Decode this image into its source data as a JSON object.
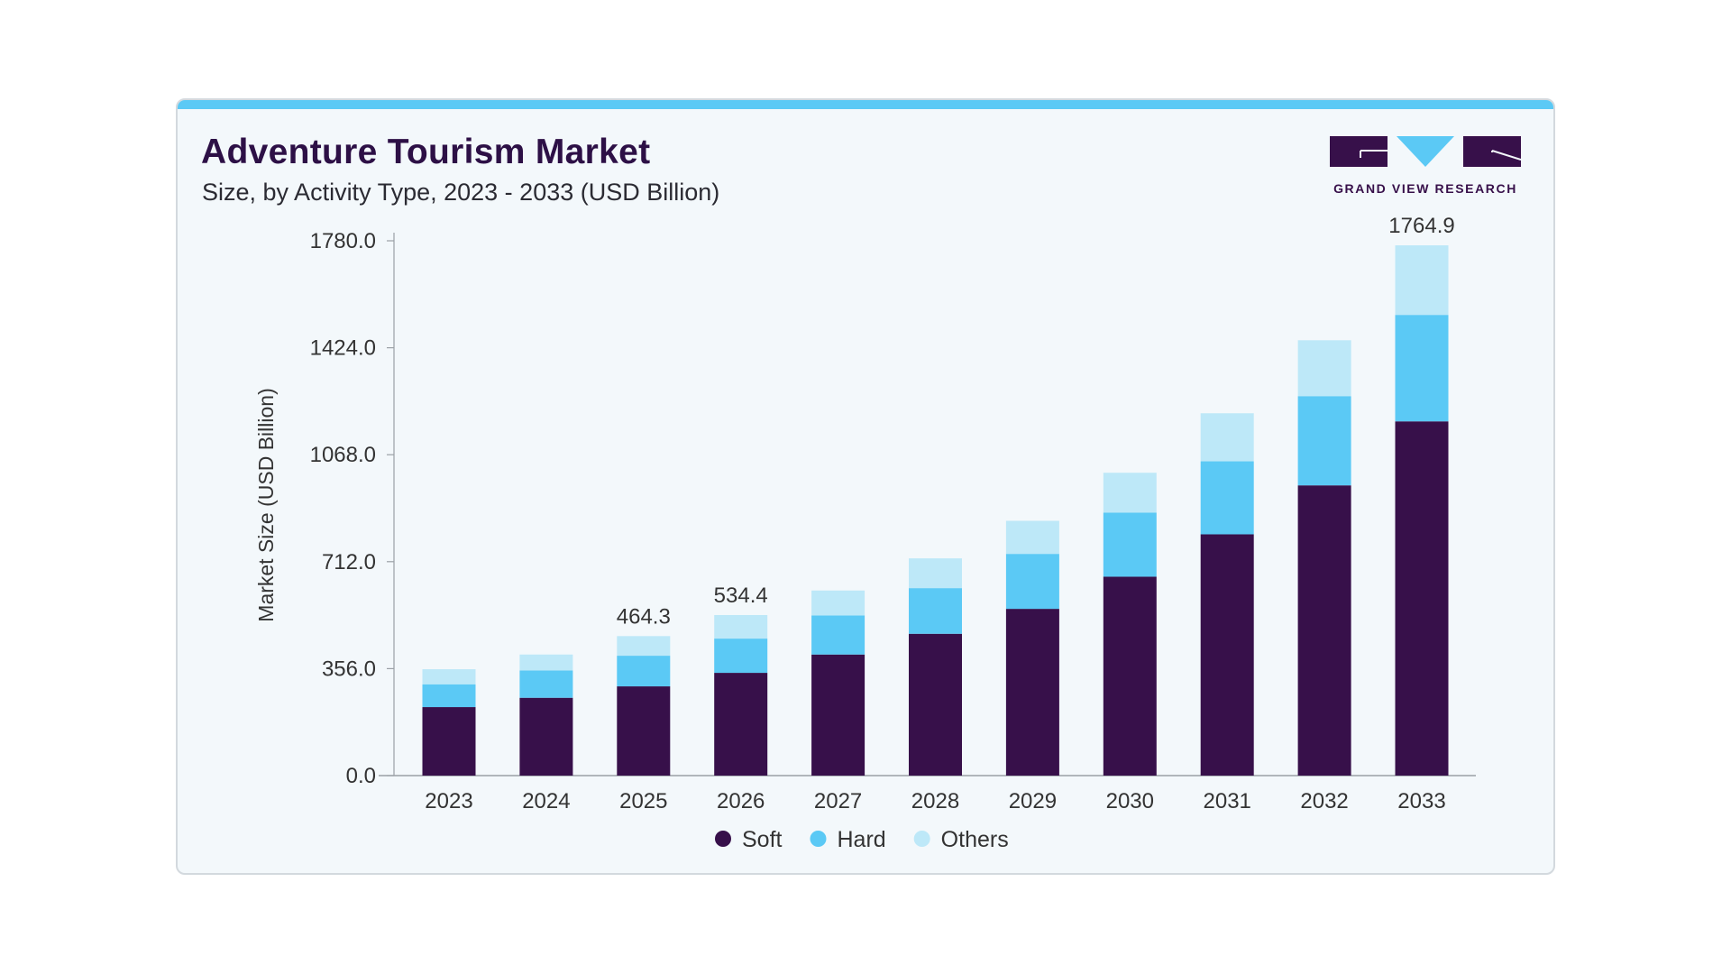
{
  "header": {
    "title": "Adventure Tourism Market",
    "subtitle": "Size, by Activity Type, 2023 - 2033 (USD Billion)"
  },
  "logo": {
    "text": "GRAND VIEW RESEARCH",
    "icon": "gvr-logo"
  },
  "colors": {
    "accent": "#5bc9f5",
    "soft": "#37104a",
    "hard": "#5bc9f5",
    "others": "#bde8f8",
    "background": "#f3f8fb"
  },
  "chart_data": {
    "type": "bar",
    "stacked": true,
    "title": "Adventure Tourism Market",
    "subtitle": "Size, by Activity Type, 2023 - 2033 (USD Billion)",
    "xlabel": "",
    "ylabel": "Market Size (USD Billion)",
    "ylim": [
      0,
      1780
    ],
    "yticks": [
      "0.0",
      "356.0",
      "712.0",
      "1068.0",
      "1424.0",
      "1780.0"
    ],
    "grid": false,
    "legend_position": "bottom",
    "categories": [
      "2023",
      "2024",
      "2025",
      "2026",
      "2027",
      "2028",
      "2029",
      "2030",
      "2031",
      "2032",
      "2033"
    ],
    "series": [
      {
        "name": "Soft",
        "color": "#37104a",
        "values": [
          228,
          259,
          297,
          342,
          403,
          472,
          555,
          662,
          803,
          966,
          1179
        ]
      },
      {
        "name": "Hard",
        "color": "#5bc9f5",
        "values": [
          76,
          91,
          102,
          114,
          130,
          152,
          183,
          213,
          243,
          297,
          354.4
        ]
      },
      {
        "name": "Others",
        "color": "#bde8f8",
        "values": [
          50,
          53,
          65.3,
          78.4,
          83,
          99,
          110,
          133,
          160,
          186,
          231.5
        ]
      }
    ],
    "data_labels": [
      {
        "category": "2025",
        "text": "464.3"
      },
      {
        "category": "2026",
        "text": "534.4"
      },
      {
        "category": "2033",
        "text": "1764.9"
      }
    ]
  }
}
